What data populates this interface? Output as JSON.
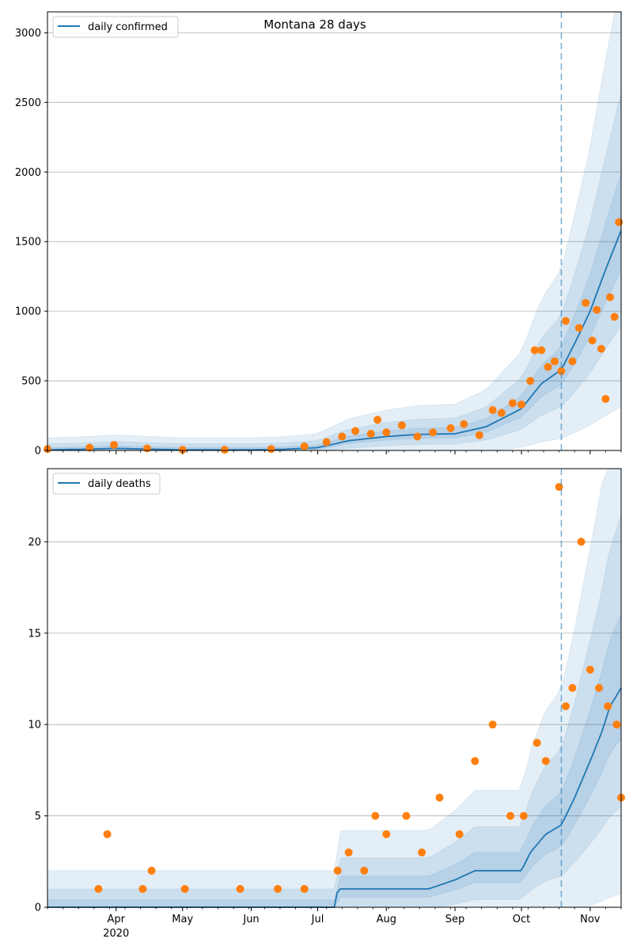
{
  "colors": {
    "line": "#1f77b4",
    "points": "#ff7f0e",
    "band": "#1f77b4",
    "grid": "#b0b0b0",
    "forecast_line": "#1f77b4"
  },
  "chart_data": [
    {
      "type": "line",
      "title": "Montana 28 days",
      "legend": [
        "daily confirmed"
      ],
      "legend_position": "top-left",
      "grid": "horizontal",
      "xlabel": "",
      "ylabel": "",
      "ylim": [
        0,
        3150
      ],
      "yticks": [
        0,
        500,
        1000,
        1500,
        2000,
        2500,
        3000
      ],
      "forecast_start": "2020-10-19",
      "series": [
        {
          "name": "daily confirmed",
          "kind": "model-median",
          "x": [
            "2020-03-01",
            "2020-03-15",
            "2020-04-01",
            "2020-04-15",
            "2020-05-01",
            "2020-05-15",
            "2020-06-01",
            "2020-06-15",
            "2020-07-01",
            "2020-07-15",
            "2020-08-01",
            "2020-08-15",
            "2020-09-01",
            "2020-09-15",
            "2020-10-01",
            "2020-10-10",
            "2020-10-19",
            "2020-10-26",
            "2020-11-01",
            "2020-11-08",
            "2020-11-15"
          ],
          "y": [
            5,
            8,
            15,
            10,
            5,
            5,
            5,
            8,
            20,
            70,
            100,
            115,
            120,
            170,
            300,
            480,
            580,
            800,
            1000,
            1300,
            1580
          ]
        },
        {
          "name": "",
          "kind": "observed",
          "x": [
            "2020-03-01",
            "2020-03-20",
            "2020-03-31",
            "2020-04-15",
            "2020-05-01",
            "2020-05-20",
            "2020-06-10",
            "2020-06-25",
            "2020-07-05",
            "2020-07-12",
            "2020-07-18",
            "2020-07-25",
            "2020-07-28",
            "2020-08-01",
            "2020-08-08",
            "2020-08-15",
            "2020-08-22",
            "2020-08-30",
            "2020-09-05",
            "2020-09-12",
            "2020-09-18",
            "2020-09-22",
            "2020-09-27",
            "2020-10-01",
            "2020-10-05",
            "2020-10-07",
            "2020-10-10",
            "2020-10-13",
            "2020-10-16",
            "2020-10-19",
            "2020-10-21",
            "2020-10-24",
            "2020-10-27",
            "2020-10-30",
            "2020-11-02",
            "2020-11-04",
            "2020-11-06",
            "2020-11-08",
            "2020-11-10",
            "2020-11-12",
            "2020-11-14"
          ],
          "y": [
            10,
            20,
            40,
            15,
            5,
            5,
            10,
            30,
            60,
            100,
            140,
            120,
            220,
            130,
            180,
            100,
            130,
            160,
            190,
            110,
            290,
            270,
            340,
            330,
            500,
            720,
            720,
            600,
            640,
            570,
            930,
            640,
            880,
            1060,
            790,
            1010,
            730,
            370,
            1100,
            960,
            1640
          ]
        }
      ]
    },
    {
      "type": "line",
      "title": "",
      "legend": [
        "daily deaths"
      ],
      "legend_position": "top-left",
      "grid": "horizontal",
      "xlabel": "",
      "ylabel": "",
      "ylim": [
        0,
        24
      ],
      "yticks": [
        0,
        5,
        10,
        15,
        20
      ],
      "xticks": [
        "Apr",
        "May",
        "Jun",
        "Jul",
        "Aug",
        "Sep",
        "Oct",
        "Nov"
      ],
      "xtick_year": "2020",
      "forecast_start": "2020-10-19",
      "series": [
        {
          "name": "daily deaths",
          "kind": "model-median",
          "x": [
            "2020-03-01",
            "2020-07-09",
            "2020-07-10",
            "2020-07-25",
            "2020-08-20",
            "2020-09-01",
            "2020-09-10",
            "2020-10-01",
            "2020-10-05",
            "2020-10-12",
            "2020-10-19",
            "2020-10-25",
            "2020-11-01",
            "2020-11-06",
            "2020-11-10",
            "2020-11-15"
          ],
          "y": [
            0,
            0,
            1,
            1,
            1,
            1.5,
            2,
            2,
            3,
            4,
            4.5,
            6,
            8,
            9.5,
            11,
            12
          ]
        },
        {
          "name": "",
          "kind": "observed",
          "x": [
            "2020-03-24",
            "2020-03-28",
            "2020-04-13",
            "2020-04-17",
            "2020-05-02",
            "2020-05-27",
            "2020-06-13",
            "2020-06-25",
            "2020-07-10",
            "2020-07-15",
            "2020-07-22",
            "2020-07-27",
            "2020-08-01",
            "2020-08-10",
            "2020-08-17",
            "2020-08-25",
            "2020-09-03",
            "2020-09-10",
            "2020-09-18",
            "2020-09-26",
            "2020-10-02",
            "2020-10-08",
            "2020-10-12",
            "2020-10-18",
            "2020-10-21",
            "2020-10-24",
            "2020-10-28",
            "2020-11-01",
            "2020-11-05",
            "2020-11-09",
            "2020-11-13",
            "2020-11-15"
          ],
          "y": [
            1,
            4,
            1,
            2,
            1,
            1,
            1,
            1,
            2,
            3,
            2,
            5,
            4,
            5,
            3,
            6,
            4,
            8,
            10,
            5,
            5,
            9,
            8,
            23,
            11,
            12,
            20,
            13,
            12,
            11,
            10,
            6
          ]
        }
      ]
    }
  ]
}
